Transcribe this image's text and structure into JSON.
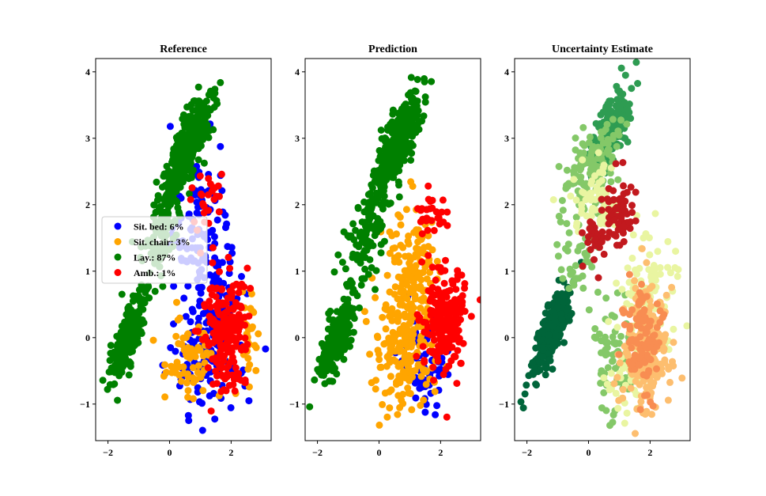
{
  "chart_data": [
    {
      "type": "scatter",
      "title": "Reference",
      "xlim": [
        -2.4,
        3.3
      ],
      "ylim": [
        -1.55,
        4.2
      ],
      "xticks": [
        -2,
        0,
        2
      ],
      "yticks": [
        -1,
        0,
        1,
        2,
        3,
        4
      ],
      "tick_labels_x": [
        "−2",
        "0",
        "2"
      ],
      "tick_labels_y": [
        "−1",
        "0",
        "1",
        "2",
        "3",
        "4"
      ],
      "legend": {
        "placement": "center-left",
        "entries": [
          {
            "label": "Sit. bed: 6%",
            "color": "#0000ff"
          },
          {
            "label": "Sit. chair: 3%",
            "color": "#ffa500"
          },
          {
            "label": "Lay.: 87%",
            "color": "#008000"
          },
          {
            "label": "Amb.: 1%",
            "color": "#ff0000"
          }
        ]
      },
      "series": [
        {
          "name": "Sit. bed: 6%",
          "color": "#0000ff",
          "count": 260,
          "regions": [
            {
              "cx": 1.0,
              "cy": 1.6,
              "sx": 0.45,
              "sy": 0.75,
              "w": 0.45
            },
            {
              "cx": 1.6,
              "cy": 0.3,
              "sx": 0.55,
              "sy": 0.65,
              "w": 0.35
            },
            {
              "cx": 1.0,
              "cy": -0.5,
              "sx": 0.5,
              "sy": 0.35,
              "w": 0.2
            }
          ]
        },
        {
          "name": "Sit. chair: 3%",
          "color": "#ffa500",
          "count": 110,
          "regions": [
            {
              "cx": 0.8,
              "cy": -0.3,
              "sx": 0.45,
              "sy": 0.3,
              "w": 0.7
            },
            {
              "cx": 2.6,
              "cy": 0.0,
              "sx": 0.15,
              "sy": 0.3,
              "w": 0.3
            }
          ]
        },
        {
          "name": "Lay.: 87%",
          "color": "#008000",
          "count": 750,
          "regions": [
            {
              "cx": 0.6,
              "cy": 2.9,
              "sx": 0.35,
              "sy": 0.35,
              "w": 0.5,
              "rho": 0.75
            },
            {
              "cx": -1.3,
              "cy": 0.05,
              "sx": 0.3,
              "sy": 0.35,
              "w": 0.35,
              "rho": 0.8
            },
            {
              "cx": -0.3,
              "cy": 1.6,
              "sx": 0.4,
              "sy": 0.4,
              "w": 0.15,
              "rho": 0.6
            }
          ]
        },
        {
          "name": "Amb.: 1%",
          "color": "#ff0000",
          "count": 240,
          "regions": [
            {
              "cx": 1.9,
              "cy": 0.1,
              "sx": 0.35,
              "sy": 0.45,
              "w": 0.9
            },
            {
              "cx": 1.3,
              "cy": 2.1,
              "sx": 0.25,
              "sy": 0.2,
              "w": 0.1
            }
          ]
        }
      ]
    },
    {
      "type": "scatter",
      "title": "Prediction",
      "xlim": [
        -2.4,
        3.3
      ],
      "ylim": [
        -1.55,
        4.2
      ],
      "xticks": [
        -2,
        0,
        2
      ],
      "yticks": [
        -1,
        0,
        1,
        2,
        3,
        4
      ],
      "tick_labels_x": [
        "−2",
        "0",
        "2"
      ],
      "tick_labels_y": [
        "−1",
        "0",
        "1",
        "2",
        "3",
        "4"
      ],
      "series": [
        {
          "color": "#0000ff",
          "count": 70,
          "regions": [
            {
              "cx": 1.5,
              "cy": -0.4,
              "sx": 0.35,
              "sy": 0.4,
              "w": 1.0
            }
          ]
        },
        {
          "color": "#ffa500",
          "count": 330,
          "regions": [
            {
              "cx": 0.8,
              "cy": -0.2,
              "sx": 0.5,
              "sy": 0.45,
              "w": 0.6
            },
            {
              "cx": 1.1,
              "cy": 1.1,
              "sx": 0.4,
              "sy": 0.5,
              "w": 0.4
            }
          ]
        },
        {
          "color": "#008000",
          "count": 700,
          "regions": [
            {
              "cx": 0.6,
              "cy": 2.9,
              "sx": 0.35,
              "sy": 0.35,
              "w": 0.5,
              "rho": 0.75
            },
            {
              "cx": -1.3,
              "cy": 0.05,
              "sx": 0.3,
              "sy": 0.35,
              "w": 0.35,
              "rho": 0.8
            },
            {
              "cx": -0.4,
              "cy": 1.5,
              "sx": 0.4,
              "sy": 0.4,
              "w": 0.15,
              "rho": 0.6
            }
          ]
        },
        {
          "color": "#ff0000",
          "count": 230,
          "regions": [
            {
              "cx": 2.1,
              "cy": 0.2,
              "sx": 0.35,
              "sy": 0.45,
              "w": 0.85
            },
            {
              "cx": 1.7,
              "cy": 1.9,
              "sx": 0.25,
              "sy": 0.2,
              "w": 0.15
            }
          ]
        }
      ]
    },
    {
      "type": "scatter",
      "title": "Uncertainty Estimate",
      "xlim": [
        -2.4,
        3.3
      ],
      "ylim": [
        -1.55,
        4.2
      ],
      "xticks": [
        -2,
        0,
        2
      ],
      "yticks": [
        -1,
        0,
        1,
        2,
        3,
        4
      ],
      "tick_labels_x": [
        "−2",
        "0",
        "2"
      ],
      "tick_labels_y": [
        "−1",
        "0",
        "1",
        "2",
        "3",
        "4"
      ],
      "colormap": "RdYlGn",
      "series": [
        {
          "color": "#00653a",
          "count": 300,
          "regions": [
            {
              "cx": -1.2,
              "cy": 0.1,
              "sx": 0.3,
              "sy": 0.35,
              "w": 1.0,
              "rho": 0.8
            }
          ]
        },
        {
          "color": "#2e9c52",
          "count": 220,
          "regions": [
            {
              "cx": 0.7,
              "cy": 3.1,
              "sx": 0.3,
              "sy": 0.3,
              "w": 1.0,
              "rho": 0.7
            }
          ]
        },
        {
          "color": "#84c868",
          "count": 240,
          "regions": [
            {
              "cx": 0.1,
              "cy": 2.6,
              "sx": 0.5,
              "sy": 0.35,
              "w": 0.45,
              "rho": 0.6
            },
            {
              "cx": 0.9,
              "cy": -0.3,
              "sx": 0.4,
              "sy": 0.4,
              "w": 0.35
            },
            {
              "cx": -0.4,
              "cy": 1.3,
              "sx": 0.35,
              "sy": 0.4,
              "w": 0.2
            }
          ]
        },
        {
          "color": "#e9f5a1",
          "count": 200,
          "regions": [
            {
              "cx": 1.9,
              "cy": 0.6,
              "sx": 0.45,
              "sy": 0.5,
              "w": 0.5
            },
            {
              "cx": 0.3,
              "cy": 2.1,
              "sx": 0.4,
              "sy": 0.25,
              "w": 0.3
            },
            {
              "cx": 1.2,
              "cy": -0.6,
              "sx": 0.3,
              "sy": 0.3,
              "w": 0.2
            }
          ]
        },
        {
          "color": "#fdbe6f",
          "count": 230,
          "regions": [
            {
              "cx": 1.9,
              "cy": -0.2,
              "sx": 0.4,
              "sy": 0.45,
              "w": 1.0
            }
          ]
        },
        {
          "color": "#f88d52",
          "count": 110,
          "regions": [
            {
              "cx": 1.8,
              "cy": 0.0,
              "sx": 0.3,
              "sy": 0.4,
              "w": 1.0
            }
          ]
        },
        {
          "color": "#c2191e",
          "count": 90,
          "regions": [
            {
              "cx": 1.0,
              "cy": 1.95,
              "sx": 0.3,
              "sy": 0.25,
              "w": 0.6
            },
            {
              "cx": 0.2,
              "cy": 1.5,
              "sx": 0.2,
              "sy": 0.2,
              "w": 0.4
            }
          ]
        }
      ]
    }
  ]
}
